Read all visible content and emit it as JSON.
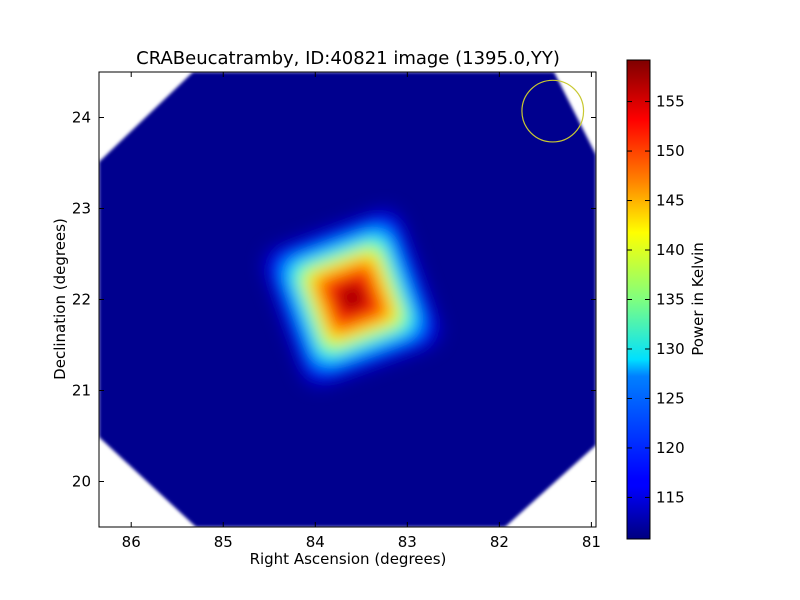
{
  "chart_data": {
    "type": "heatmap",
    "title": "CRABeucatramby, ID:40821 image (1395.0,YY)",
    "xlabel": "Right Ascension (degrees)",
    "ylabel": "Declination (degrees)",
    "xlim": [
      86.35,
      80.95
    ],
    "ylim": [
      19.5,
      24.5
    ],
    "x_ticks": [
      86,
      85,
      84,
      83,
      82,
      81
    ],
    "y_ticks": [
      20,
      21,
      22,
      23,
      24
    ],
    "colormap": "jet",
    "colorbar": {
      "label": "Power in Kelvin",
      "min": 110.8,
      "max": 159.2,
      "ticks": [
        115,
        120,
        125,
        130,
        135,
        140,
        145,
        150,
        155
      ]
    },
    "background_level": 111.5,
    "source": {
      "center_ra": 83.6,
      "center_dec": 22.02,
      "peak": 158.5
    },
    "beam_marker": {
      "center_ra": 81.42,
      "center_dec": 24.07,
      "radius_deg": 0.36,
      "color": "#c8c832"
    },
    "coverage_mask_color": "#ffffff",
    "colors": {
      "low": "#00007f",
      "high": "#7f0000",
      "frame": "#000000"
    }
  }
}
